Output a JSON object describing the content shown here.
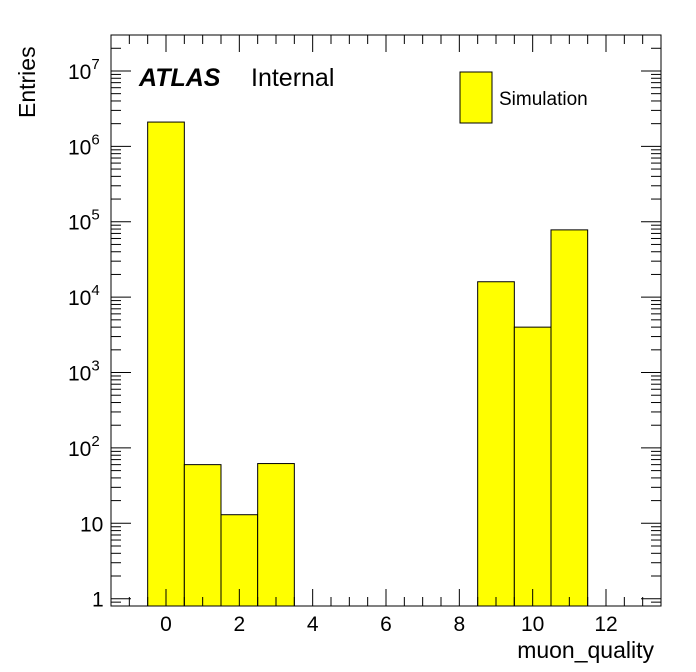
{
  "chart_data": {
    "type": "bar",
    "title": "",
    "xlabel": "muon_quality",
    "ylabel": "Entries",
    "x_scale": "linear",
    "y_scale": "log",
    "xlim": [
      -1.5,
      13.5
    ],
    "ylim": [
      0.8,
      30000000
    ],
    "x_ticks": [
      0,
      2,
      4,
      6,
      8,
      10,
      12
    ],
    "y_ticks": [
      {
        "value": 1,
        "base": "1",
        "exp": ""
      },
      {
        "value": 10,
        "base": "10",
        "exp": ""
      },
      {
        "value": 100,
        "base": "10",
        "exp": "2"
      },
      {
        "value": 1000,
        "base": "10",
        "exp": "3"
      },
      {
        "value": 10000,
        "base": "10",
        "exp": "4"
      },
      {
        "value": 100000,
        "base": "10",
        "exp": "5"
      },
      {
        "value": 1000000,
        "base": "10",
        "exp": "6"
      },
      {
        "value": 10000000,
        "base": "10",
        "exp": "7"
      }
    ],
    "bin_width": 1,
    "bins": [
      {
        "center": 0,
        "value": 2100000
      },
      {
        "center": 1,
        "value": 60
      },
      {
        "center": 2,
        "value": 13
      },
      {
        "center": 3,
        "value": 62
      },
      {
        "center": 9,
        "value": 16000
      },
      {
        "center": 10,
        "value": 4000
      },
      {
        "center": 11,
        "value": 78000
      }
    ],
    "series": [
      {
        "name": "Simulation",
        "color": "#ffff00"
      }
    ],
    "legend_position": "top-right",
    "grid": false,
    "label_bold": "ATLAS",
    "label_normal": "Internal"
  }
}
